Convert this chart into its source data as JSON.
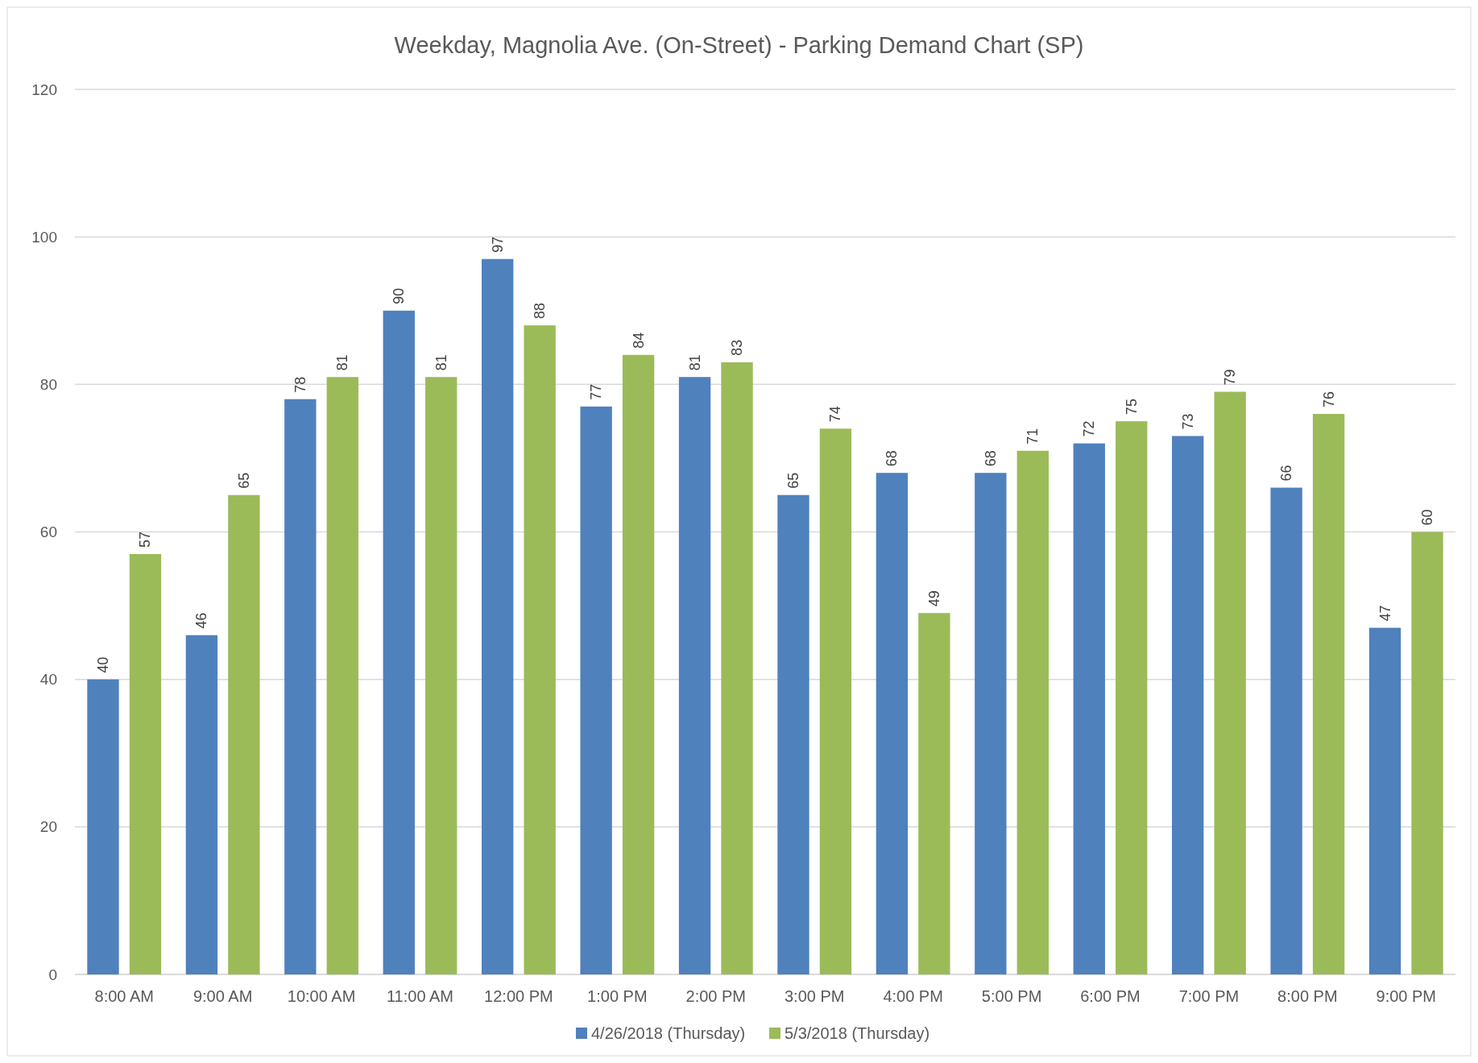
{
  "chart_data": {
    "type": "bar",
    "title": "Weekday, Magnolia Ave. (On-Street) - Parking Demand Chart (SP)",
    "categories": [
      "8:00 AM",
      "9:00 AM",
      "10:00 AM",
      "11:00 AM",
      "12:00 PM",
      "1:00 PM",
      "2:00 PM",
      "3:00 PM",
      "4:00 PM",
      "5:00 PM",
      "6:00 PM",
      "7:00 PM",
      "8:00 PM",
      "9:00 PM"
    ],
    "series": [
      {
        "name": "4/26/2018 (Thursday)",
        "color": "#4f81bd",
        "values": [
          40,
          46,
          78,
          90,
          97,
          77,
          81,
          65,
          68,
          68,
          72,
          73,
          66,
          47
        ]
      },
      {
        "name": "5/3/2018 (Thursday)",
        "color": "#9bbb59",
        "values": [
          57,
          65,
          81,
          81,
          88,
          84,
          83,
          74,
          49,
          71,
          75,
          79,
          76,
          60
        ]
      }
    ],
    "ylim": [
      0,
      120
    ],
    "yticks": [
      0,
      20,
      40,
      60,
      80,
      100,
      120
    ],
    "grid": "y",
    "legend": "bottom",
    "data_labels": true
  }
}
